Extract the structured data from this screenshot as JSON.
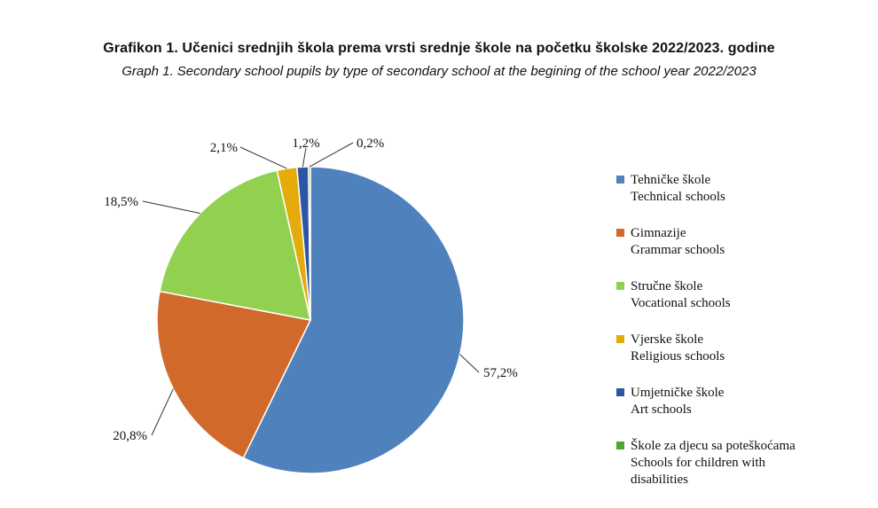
{
  "title": "Grafikon 1.  Učenici srednjih škola prema vrsti srednje škole na početku školske 2022/2023. godine",
  "subtitle": "Graph 1. Secondary school pupils by type of secondary school at the begining of the school year 2022/2023",
  "chart_data": {
    "type": "pie",
    "start_angle_deg": 90,
    "direction": "clockwise",
    "slices": [
      {
        "label_local": "Tehničke škole",
        "label_en": "Technical schools",
        "value": 57.2,
        "label": "57,2%",
        "color": "#4F81BD"
      },
      {
        "label_local": "Gimnazije",
        "label_en": "Grammar schools",
        "value": 20.8,
        "label": "20,8%",
        "color": "#D0692A"
      },
      {
        "label_local": "Stručne škole",
        "label_en": "Vocational schools",
        "value": 18.5,
        "label": "18,5%",
        "color": "#92D050"
      },
      {
        "label_local": "Vjerske škole",
        "label_en": "Religious schools",
        "value": 2.1,
        "label": "2,1%",
        "color": "#E3AC0B"
      },
      {
        "label_local": "Umjetničke škole",
        "label_en": "Art schools",
        "value": 1.2,
        "label": "1,2%",
        "color": "#2E55A4"
      },
      {
        "label_local": "Škole za djecu sa poteškoćama",
        "label_en": "Schools for children with disabilities",
        "value": 0.2,
        "label": "0,2%",
        "color": "#4EA72E"
      }
    ],
    "legend_position": "right"
  },
  "legend": {
    "items": [
      {
        "lines": [
          "Tehničke škole",
          "Technical schools"
        ],
        "color": "#4F81BD"
      },
      {
        "lines": [
          "Gimnazije",
          "Grammar schools"
        ],
        "color": "#D0692A"
      },
      {
        "lines": [
          "Stručne škole",
          "Vocational schools"
        ],
        "color": "#92D050"
      },
      {
        "lines": [
          "Vjerske škole",
          "Religious schools"
        ],
        "color": "#E3AC0B"
      },
      {
        "lines": [
          "Umjetničke škole",
          "Art schools"
        ],
        "color": "#2E55A4"
      },
      {
        "lines": [
          "Škole za djecu sa poteškoćama",
          "Schools for children with",
          "disabilities"
        ],
        "color": "#4EA72E"
      }
    ]
  }
}
